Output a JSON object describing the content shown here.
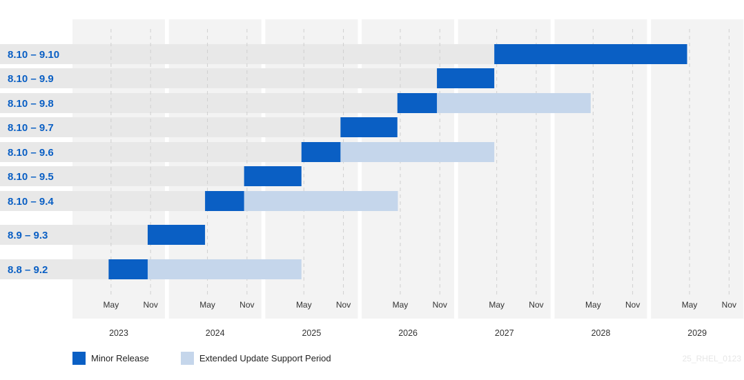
{
  "chart_data": {
    "type": "gantt",
    "title": "",
    "years": [
      "2023",
      "2024",
      "2025",
      "2026",
      "2027",
      "2028",
      "2029"
    ],
    "month_ticks": [
      "May",
      "Nov"
    ],
    "rows": [
      {
        "label": "8.10 – 9.10",
        "minor_start": 2027.375,
        "minor_end": 2029.375,
        "eus_end": null
      },
      {
        "label": "8.10 – 9.9",
        "minor_start": 2026.78,
        "minor_end": 2027.375,
        "eus_end": null
      },
      {
        "label": "8.10 – 9.8",
        "minor_start": 2026.37,
        "minor_end": 2026.78,
        "eus_end": 2028.375
      },
      {
        "label": "8.10 – 9.7",
        "minor_start": 2025.78,
        "minor_end": 2026.37,
        "eus_end": null
      },
      {
        "label": "8.10 – 9.6",
        "minor_start": 2025.375,
        "minor_end": 2025.78,
        "eus_end": 2027.375
      },
      {
        "label": "8.10 – 9.5",
        "minor_start": 2024.78,
        "minor_end": 2025.375,
        "eus_end": null
      },
      {
        "label": "8.10 – 9.4",
        "minor_start": 2024.375,
        "minor_end": 2024.78,
        "eus_end": 2026.375
      },
      {
        "label": "8.9 – 9.3",
        "minor_start": 2023.78,
        "minor_end": 2024.375,
        "eus_end": null
      },
      {
        "label": "8.8 – 9.2",
        "minor_start": 2023.375,
        "minor_end": 2023.78,
        "eus_end": 2025.375
      }
    ],
    "legend": [
      {
        "label": "Minor Release",
        "color": "#0a5fc4"
      },
      {
        "label": "Extended Update Support Period",
        "color": "#c5d6eb"
      }
    ],
    "colors": {
      "minor": "#0a5fc4",
      "eus": "#c5d6eb",
      "track": "#e8e8e8",
      "year_band": "#f3f3f3",
      "label": "#0a5fc4"
    }
  },
  "watermark": "25_RHEL_0123"
}
